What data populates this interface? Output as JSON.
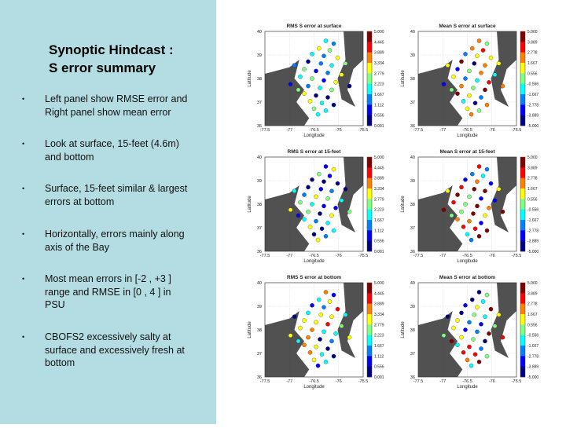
{
  "title": {
    "line1": "Synoptic Hindcast :",
    "line2": "S error summary"
  },
  "bullets": [
    {
      "line1": "Left panel  show RMSE error and",
      "line2": "Right panel show mean error"
    },
    {
      "line1": "Look at surface, 15-feet (4.6m)",
      "line2": "and bottom"
    },
    {
      "line1": "Surface, 15-feet similar & largest",
      "line2": "errors at bottom"
    },
    {
      "line1": "Horizontally, errors mainly along",
      "line2": "axis of the Bay"
    },
    {
      "line1": "Most  mean errors in [-2 , +3 ]",
      "line2": "range and RMSE in [0 , 4 ] in",
      "line3": "PSU"
    },
    {
      "line1": "CBOFS2 excessively salty at",
      "line2": "surface and excessively fresh at",
      "line3": "bottom"
    }
  ],
  "bullet_marker": "•",
  "panels": [
    {
      "title": "RMS S error at surface",
      "kind": "rms"
    },
    {
      "title": "Mean S error at surface",
      "kind": "mean"
    },
    {
      "title": "RMS S error at 15-feet",
      "kind": "rms"
    },
    {
      "title": "Mean S error at 15-feet",
      "kind": "mean"
    },
    {
      "title": "RMS S error at bottom",
      "kind": "rms"
    },
    {
      "title": "Mean S error at bottom",
      "kind": "mean"
    }
  ],
  "axes": {
    "xlabel": "Longitude",
    "ylabel": "Latitude",
    "xticks": [
      "-77.5",
      "-77",
      "-76.5",
      "-76",
      "-75.5"
    ],
    "yticks": [
      "40",
      "39",
      "38",
      "37",
      "36"
    ]
  },
  "colorbars": {
    "rms": [
      "5.000",
      "4.445",
      "3.889",
      "3.334",
      "2.779",
      "2.223",
      "1.667",
      "1.112",
      "0.556",
      "0.001"
    ],
    "mean": [
      "5.000",
      "3.889",
      "2.778",
      "1.667",
      "0.556",
      "-0.556",
      "-1.667",
      "-2.778",
      "-3.889",
      "-5.000"
    ]
  },
  "colors": {
    "left_bg": "#b3dde3",
    "jet": [
      "#800000",
      "#ff0000",
      "#ff8000",
      "#ffff00",
      "#80ff80",
      "#00ffff",
      "#0080ff",
      "#0000ff",
      "#000080"
    ]
  }
}
